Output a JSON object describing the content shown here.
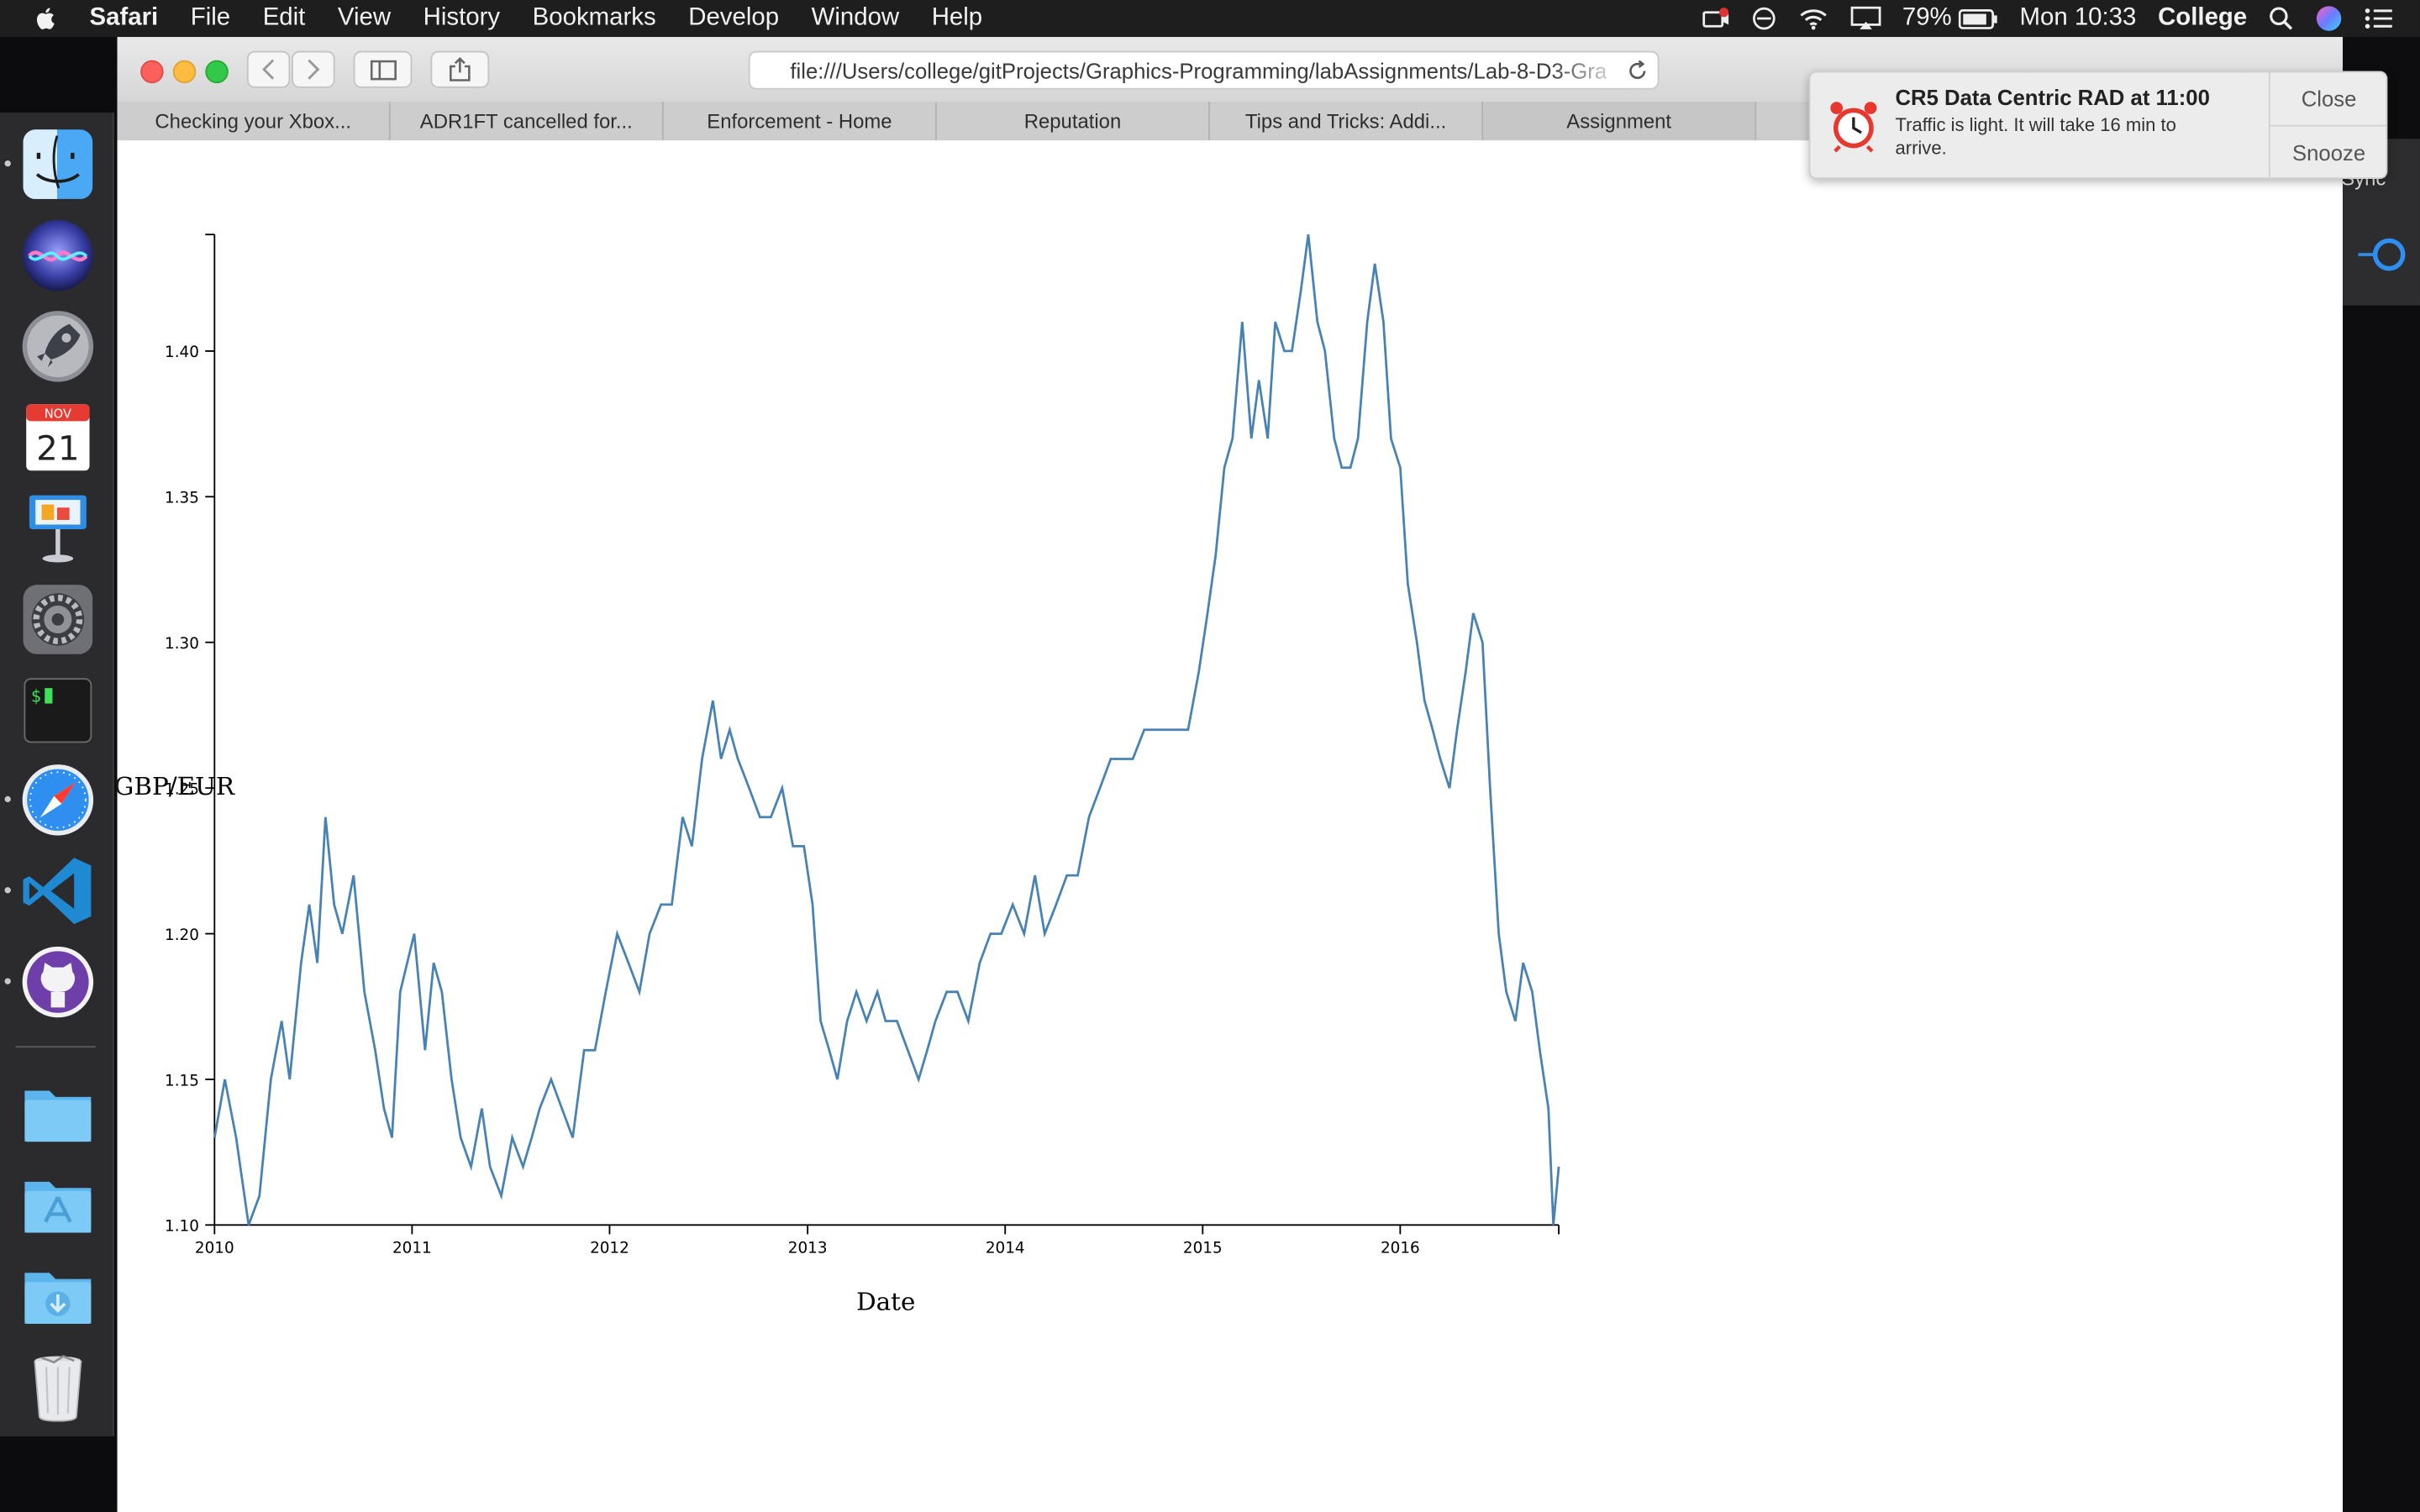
{
  "menubar": {
    "app_name": "Safari",
    "items": [
      "File",
      "Edit",
      "View",
      "History",
      "Bookmarks",
      "Develop",
      "Window",
      "Help"
    ],
    "battery": "79%",
    "clock": "Mon 10:33",
    "user": "College"
  },
  "dock": {
    "apps": [
      {
        "name": "Finder",
        "running": true
      },
      {
        "name": "Siri",
        "running": false
      },
      {
        "name": "Launchpad",
        "running": false
      },
      {
        "name": "Calendar",
        "running": false,
        "month": "NOV",
        "day": "21"
      },
      {
        "name": "Keynote",
        "running": false
      },
      {
        "name": "System Preferences",
        "running": false
      },
      {
        "name": "Terminal",
        "running": false,
        "glyph": "$"
      },
      {
        "name": "Safari",
        "running": true
      },
      {
        "name": "Visual Studio Code",
        "running": true
      },
      {
        "name": "GitHub Desktop",
        "running": true
      },
      {
        "name": "Folder",
        "running": false
      },
      {
        "name": "Applications",
        "running": false
      },
      {
        "name": "Downloads",
        "running": false
      },
      {
        "name": "Trash",
        "running": false
      }
    ]
  },
  "browser": {
    "url": "file:///Users/college/gitProjects/Graphics-Programming/labAssignments/Lab-8-D3-Gra",
    "tabs": [
      "Checking your Xbox...",
      "ADR1FT cancelled for...",
      "Enforcement - Home",
      "Reputation",
      "Tips and Tricks: Addi...",
      "Assignment"
    ],
    "partial_right_label": "Sync"
  },
  "notification": {
    "title": "CR5 Data Centric RAD at 11:00",
    "body": "Traffic is light. It will take 16 min to arrive.",
    "close_label": "Close",
    "snooze_label": "Snooze"
  },
  "colors": {
    "line": "#4682b4",
    "menubar_bg": "#1e1e1f",
    "dock_bg": "#2b2b2e"
  },
  "chart_data": {
    "type": "line",
    "xlabel": "Date",
    "ylabel": "GBP/EUR",
    "x_ticks": [
      "2010",
      "2011",
      "2012",
      "2013",
      "2014",
      "2015",
      "2016"
    ],
    "y_ticks": [
      1.1,
      1.15,
      1.2,
      1.25,
      1.3,
      1.35,
      1.4
    ],
    "xlim": [
      "2010-01-01",
      "2016-10-20"
    ],
    "ylim": [
      1.1,
      1.44
    ],
    "grid": false,
    "legend": "none",
    "series": [
      {
        "points": [
          [
            "2010-01-01",
            1.13
          ],
          [
            "2010-01-20",
            1.15
          ],
          [
            "2010-02-10",
            1.13
          ],
          [
            "2010-03-05",
            1.1
          ],
          [
            "2010-03-25",
            1.11
          ],
          [
            "2010-04-15",
            1.15
          ],
          [
            "2010-05-05",
            1.17
          ],
          [
            "2010-05-20",
            1.15
          ],
          [
            "2010-06-10",
            1.19
          ],
          [
            "2010-06-25",
            1.21
          ],
          [
            "2010-07-10",
            1.19
          ],
          [
            "2010-07-25",
            1.24
          ],
          [
            "2010-08-10",
            1.21
          ],
          [
            "2010-08-25",
            1.2
          ],
          [
            "2010-09-15",
            1.22
          ],
          [
            "2010-10-05",
            1.18
          ],
          [
            "2010-10-25",
            1.16
          ],
          [
            "2010-11-10",
            1.14
          ],
          [
            "2010-11-25",
            1.13
          ],
          [
            "2010-12-10",
            1.18
          ],
          [
            "2011-01-05",
            1.2
          ],
          [
            "2011-01-25",
            1.16
          ],
          [
            "2011-02-10",
            1.19
          ],
          [
            "2011-02-25",
            1.18
          ],
          [
            "2011-03-15",
            1.15
          ],
          [
            "2011-04-01",
            1.13
          ],
          [
            "2011-04-20",
            1.12
          ],
          [
            "2011-05-10",
            1.14
          ],
          [
            "2011-05-25",
            1.12
          ],
          [
            "2011-06-15",
            1.11
          ],
          [
            "2011-07-05",
            1.13
          ],
          [
            "2011-07-25",
            1.12
          ],
          [
            "2011-08-10",
            1.13
          ],
          [
            "2011-08-25",
            1.14
          ],
          [
            "2011-09-15",
            1.15
          ],
          [
            "2011-10-05",
            1.14
          ],
          [
            "2011-10-25",
            1.13
          ],
          [
            "2011-11-15",
            1.16
          ],
          [
            "2011-12-05",
            1.16
          ],
          [
            "2011-12-25",
            1.18
          ],
          [
            "2012-01-15",
            1.2
          ],
          [
            "2012-02-05",
            1.19
          ],
          [
            "2012-02-25",
            1.18
          ],
          [
            "2012-03-15",
            1.2
          ],
          [
            "2012-04-05",
            1.21
          ],
          [
            "2012-04-25",
            1.21
          ],
          [
            "2012-05-15",
            1.24
          ],
          [
            "2012-06-01",
            1.23
          ],
          [
            "2012-06-20",
            1.26
          ],
          [
            "2012-07-10",
            1.28
          ],
          [
            "2012-07-25",
            1.26
          ],
          [
            "2012-08-10",
            1.27
          ],
          [
            "2012-08-25",
            1.26
          ],
          [
            "2012-09-15",
            1.25
          ],
          [
            "2012-10-05",
            1.24
          ],
          [
            "2012-10-25",
            1.24
          ],
          [
            "2012-11-15",
            1.25
          ],
          [
            "2012-12-05",
            1.23
          ],
          [
            "2012-12-25",
            1.23
          ],
          [
            "2013-01-10",
            1.21
          ],
          [
            "2013-01-25",
            1.17
          ],
          [
            "2013-02-10",
            1.16
          ],
          [
            "2013-02-25",
            1.15
          ],
          [
            "2013-03-15",
            1.17
          ],
          [
            "2013-04-01",
            1.18
          ],
          [
            "2013-04-20",
            1.17
          ],
          [
            "2013-05-10",
            1.18
          ],
          [
            "2013-05-25",
            1.17
          ],
          [
            "2013-06-15",
            1.17
          ],
          [
            "2013-07-05",
            1.16
          ],
          [
            "2013-07-25",
            1.15
          ],
          [
            "2013-08-10",
            1.16
          ],
          [
            "2013-08-25",
            1.17
          ],
          [
            "2013-09-15",
            1.18
          ],
          [
            "2013-10-05",
            1.18
          ],
          [
            "2013-10-25",
            1.17
          ],
          [
            "2013-11-15",
            1.19
          ],
          [
            "2013-12-05",
            1.2
          ],
          [
            "2013-12-25",
            1.2
          ],
          [
            "2014-01-15",
            1.21
          ],
          [
            "2014-02-05",
            1.2
          ],
          [
            "2014-02-25",
            1.22
          ],
          [
            "2014-03-15",
            1.2
          ],
          [
            "2014-04-05",
            1.21
          ],
          [
            "2014-04-25",
            1.22
          ],
          [
            "2014-05-15",
            1.22
          ],
          [
            "2014-06-05",
            1.24
          ],
          [
            "2014-06-25",
            1.25
          ],
          [
            "2014-07-15",
            1.26
          ],
          [
            "2014-08-05",
            1.26
          ],
          [
            "2014-08-25",
            1.26
          ],
          [
            "2014-09-15",
            1.27
          ],
          [
            "2014-10-05",
            1.27
          ],
          [
            "2014-10-25",
            1.27
          ],
          [
            "2014-11-15",
            1.27
          ],
          [
            "2014-12-05",
            1.27
          ],
          [
            "2014-12-25",
            1.29
          ],
          [
            "2015-01-10",
            1.31
          ],
          [
            "2015-01-25",
            1.33
          ],
          [
            "2015-02-10",
            1.36
          ],
          [
            "2015-02-25",
            1.37
          ],
          [
            "2015-03-15",
            1.41
          ],
          [
            "2015-04-01",
            1.37
          ],
          [
            "2015-04-15",
            1.39
          ],
          [
            "2015-05-01",
            1.37
          ],
          [
            "2015-05-15",
            1.41
          ],
          [
            "2015-06-01",
            1.4
          ],
          [
            "2015-06-15",
            1.4
          ],
          [
            "2015-07-01",
            1.42
          ],
          [
            "2015-07-15",
            1.44
          ],
          [
            "2015-08-01",
            1.41
          ],
          [
            "2015-08-15",
            1.4
          ],
          [
            "2015-09-01",
            1.37
          ],
          [
            "2015-09-15",
            1.36
          ],
          [
            "2015-10-01",
            1.36
          ],
          [
            "2015-10-15",
            1.37
          ],
          [
            "2015-11-01",
            1.41
          ],
          [
            "2015-11-15",
            1.43
          ],
          [
            "2015-12-01",
            1.41
          ],
          [
            "2015-12-15",
            1.37
          ],
          [
            "2016-01-01",
            1.36
          ],
          [
            "2016-01-15",
            1.32
          ],
          [
            "2016-02-01",
            1.3
          ],
          [
            "2016-02-15",
            1.28
          ],
          [
            "2016-03-01",
            1.27
          ],
          [
            "2016-03-15",
            1.26
          ],
          [
            "2016-04-01",
            1.25
          ],
          [
            "2016-04-15",
            1.27
          ],
          [
            "2016-05-01",
            1.29
          ],
          [
            "2016-05-15",
            1.31
          ],
          [
            "2016-06-01",
            1.3
          ],
          [
            "2016-06-15",
            1.25
          ],
          [
            "2016-07-01",
            1.2
          ],
          [
            "2016-07-15",
            1.18
          ],
          [
            "2016-08-01",
            1.17
          ],
          [
            "2016-08-15",
            1.19
          ],
          [
            "2016-09-01",
            1.18
          ],
          [
            "2016-09-15",
            1.16
          ],
          [
            "2016-10-01",
            1.14
          ],
          [
            "2016-10-10",
            1.1
          ],
          [
            "2016-10-20",
            1.12
          ]
        ]
      }
    ]
  }
}
